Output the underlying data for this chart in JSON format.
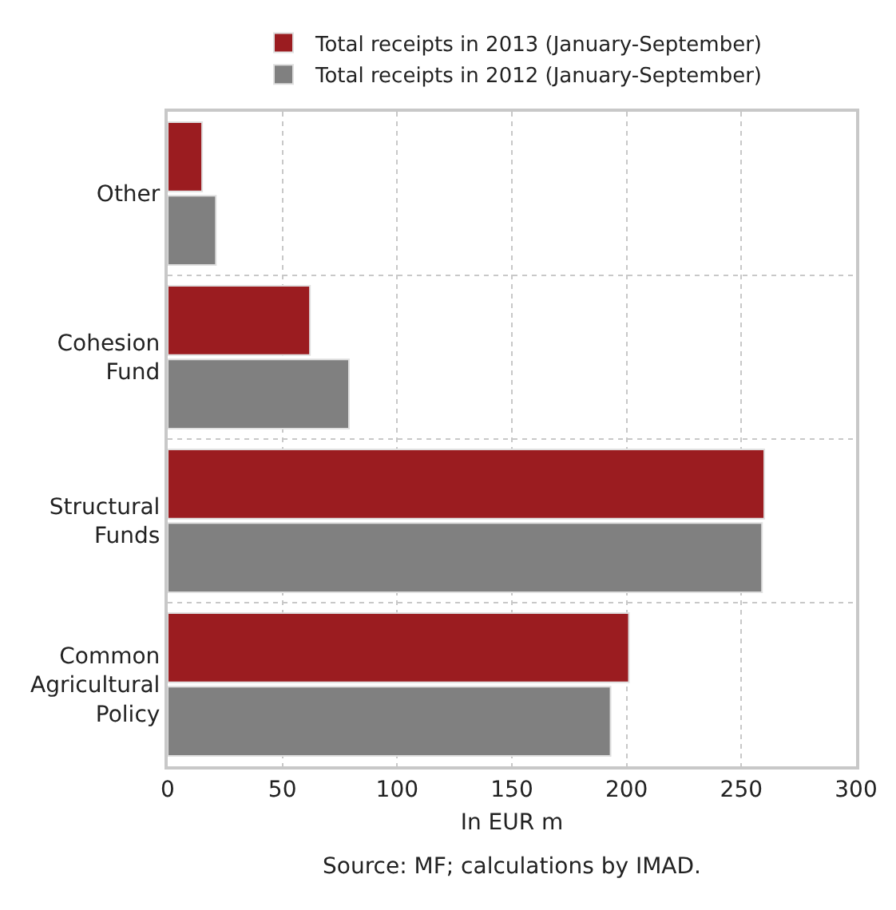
{
  "chart_data": {
    "type": "bar",
    "orientation": "horizontal",
    "categories": [
      "Other",
      "Cohesion Fund",
      "Structural Funds",
      "Common Agricultural Policy"
    ],
    "series": [
      {
        "name": "Total receipts in 2013 (January-September)",
        "color": "#9b1c20",
        "values": [
          15,
          62,
          260,
          201
        ]
      },
      {
        "name": "Total receipts in 2012 (January-September)",
        "color": "#808080",
        "values": [
          21,
          79,
          259,
          193
        ]
      }
    ],
    "xlim": [
      0,
      300
    ],
    "xticks": [
      0,
      50,
      100,
      150,
      200,
      250,
      300
    ],
    "xlabel": "In EUR m",
    "annotations": [
      "Source: MF; calculations by IMAD."
    ],
    "grid": true,
    "legend": "top"
  }
}
